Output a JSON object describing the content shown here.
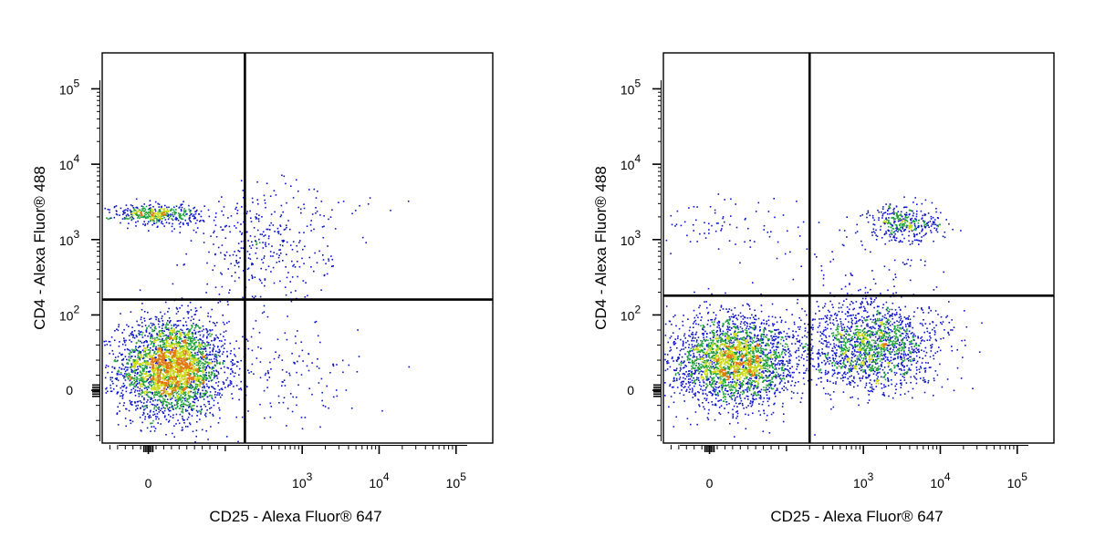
{
  "chart_data": [
    {
      "type": "scatter",
      "title": "",
      "xlabel": "CD25 - Alexa Fluor® 647",
      "ylabel": "CD4 - Alexa Fluor® 488",
      "x_scale": "biexponential",
      "y_scale": "biexponential",
      "x_ticks": [
        {
          "value": 0,
          "label": "0"
        },
        {
          "value": 1000,
          "label": "10^3"
        },
        {
          "value": 10000,
          "label": "10^4"
        },
        {
          "value": 100000,
          "label": "10^5"
        }
      ],
      "y_ticks": [
        {
          "value": 0,
          "label": "0"
        },
        {
          "value": 100,
          "label": "10^2"
        },
        {
          "value": 1000,
          "label": "10^3"
        },
        {
          "value": 10000,
          "label": "10^4"
        },
        {
          "value": 100000,
          "label": "10^5"
        }
      ],
      "gate": {
        "x": 180,
        "y": 160
      },
      "point_colors": [
        "#0a12c8",
        "#1f9f3a",
        "#c8d818",
        "#e07a10"
      ],
      "populations": [
        {
          "cx": 30,
          "cy": 30,
          "sx": 0.35,
          "sy": 0.32,
          "count": 3200
        },
        {
          "cx": 10,
          "cy": 2200,
          "sx": 0.3,
          "sy": 0.07,
          "count": 420
        },
        {
          "cx": 300,
          "cy": 700,
          "sx": 0.45,
          "sy": 0.35,
          "count": 300
        },
        {
          "cx": 600,
          "cy": 20,
          "sx": 0.5,
          "sy": 0.35,
          "count": 140
        },
        {
          "cx": 900,
          "cy": 2500,
          "sx": 0.6,
          "sy": 0.25,
          "count": 60
        }
      ]
    },
    {
      "type": "scatter",
      "title": "",
      "xlabel": "CD25 - Alexa Fluor® 647",
      "ylabel": "CD4 - Alexa Fluor® 488",
      "x_scale": "biexponential",
      "y_scale": "biexponential",
      "x_ticks": [
        {
          "value": 0,
          "label": "0"
        },
        {
          "value": 1000,
          "label": "10^3"
        },
        {
          "value": 10000,
          "label": "10^4"
        },
        {
          "value": 100000,
          "label": "10^5"
        }
      ],
      "y_ticks": [
        {
          "value": 0,
          "label": "0"
        },
        {
          "value": 100,
          "label": "10^2"
        },
        {
          "value": 1000,
          "label": "10^3"
        },
        {
          "value": 10000,
          "label": "10^4"
        },
        {
          "value": 100000,
          "label": "10^5"
        }
      ],
      "gate": {
        "x": 200,
        "y": 180
      },
      "point_colors": [
        "#0a12c8",
        "#1f9f3a",
        "#c8d818",
        "#e07a10"
      ],
      "populations": [
        {
          "cx": 30,
          "cy": 40,
          "sx": 0.4,
          "sy": 0.3,
          "count": 2600
        },
        {
          "cx": 1200,
          "cy": 60,
          "sx": 0.45,
          "sy": 0.3,
          "count": 1700
        },
        {
          "cx": 3500,
          "cy": 1700,
          "sx": 0.25,
          "sy": 0.13,
          "count": 360
        },
        {
          "cx": 20,
          "cy": 1500,
          "sx": 0.5,
          "sy": 0.2,
          "count": 80
        },
        {
          "cx": 900,
          "cy": 500,
          "sx": 0.5,
          "sy": 0.35,
          "count": 80
        }
      ]
    }
  ]
}
